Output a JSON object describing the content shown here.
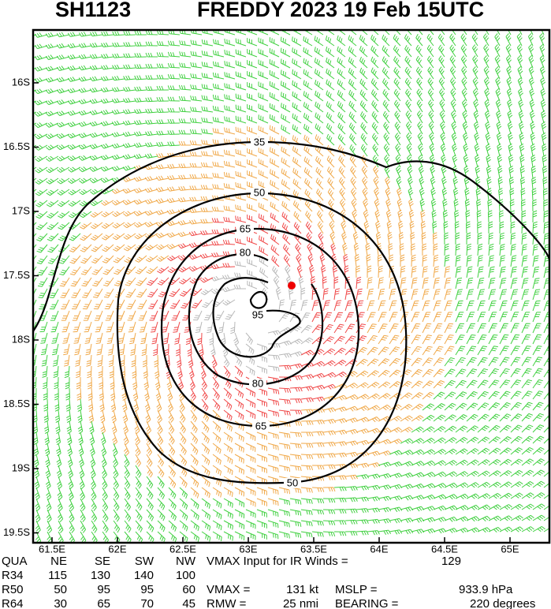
{
  "header": {
    "id": "SH1123",
    "title": "FREDDY 2023 19 Feb 15UTC"
  },
  "map": {
    "lon_ticks": [
      {
        "value": 61.5,
        "label": "61.5E"
      },
      {
        "value": 62,
        "label": "62E"
      },
      {
        "value": 62.5,
        "label": "62.5E"
      },
      {
        "value": 63,
        "label": "63E"
      },
      {
        "value": 63.5,
        "label": "63.5E"
      },
      {
        "value": 64,
        "label": "64E"
      },
      {
        "value": 64.5,
        "label": "64.5E"
      },
      {
        "value": 65,
        "label": "65E"
      }
    ],
    "lat_ticks": [
      {
        "value": -16,
        "label": "16S"
      },
      {
        "value": -16.5,
        "label": "16.5S"
      },
      {
        "value": -17,
        "label": "17S"
      },
      {
        "value": -17.5,
        "label": "17.5S"
      },
      {
        "value": -18,
        "label": "18S"
      },
      {
        "value": -18.5,
        "label": "18.5S"
      },
      {
        "value": -19,
        "label": "19S"
      },
      {
        "value": -19.5,
        "label": "19.5S"
      }
    ],
    "contours": [
      35,
      50,
      50,
      65,
      65,
      80,
      80,
      95
    ]
  },
  "table": {
    "header": [
      "QUA",
      "NE",
      "SE",
      "SW",
      "NW"
    ],
    "rows": [
      [
        "R34",
        115,
        130,
        140,
        100
      ],
      [
        "R50",
        50,
        95,
        95,
        60
      ],
      [
        "R64",
        30,
        65,
        70,
        45
      ]
    ],
    "notes": [
      "VMAX Input for IR Winds =",
      129,
      "VMAX =",
      "131 kt",
      "MSLP =",
      "933.9 hPa",
      "RMW =",
      "25 nmi",
      "BEARING =",
      "220 degrees"
    ]
  }
}
